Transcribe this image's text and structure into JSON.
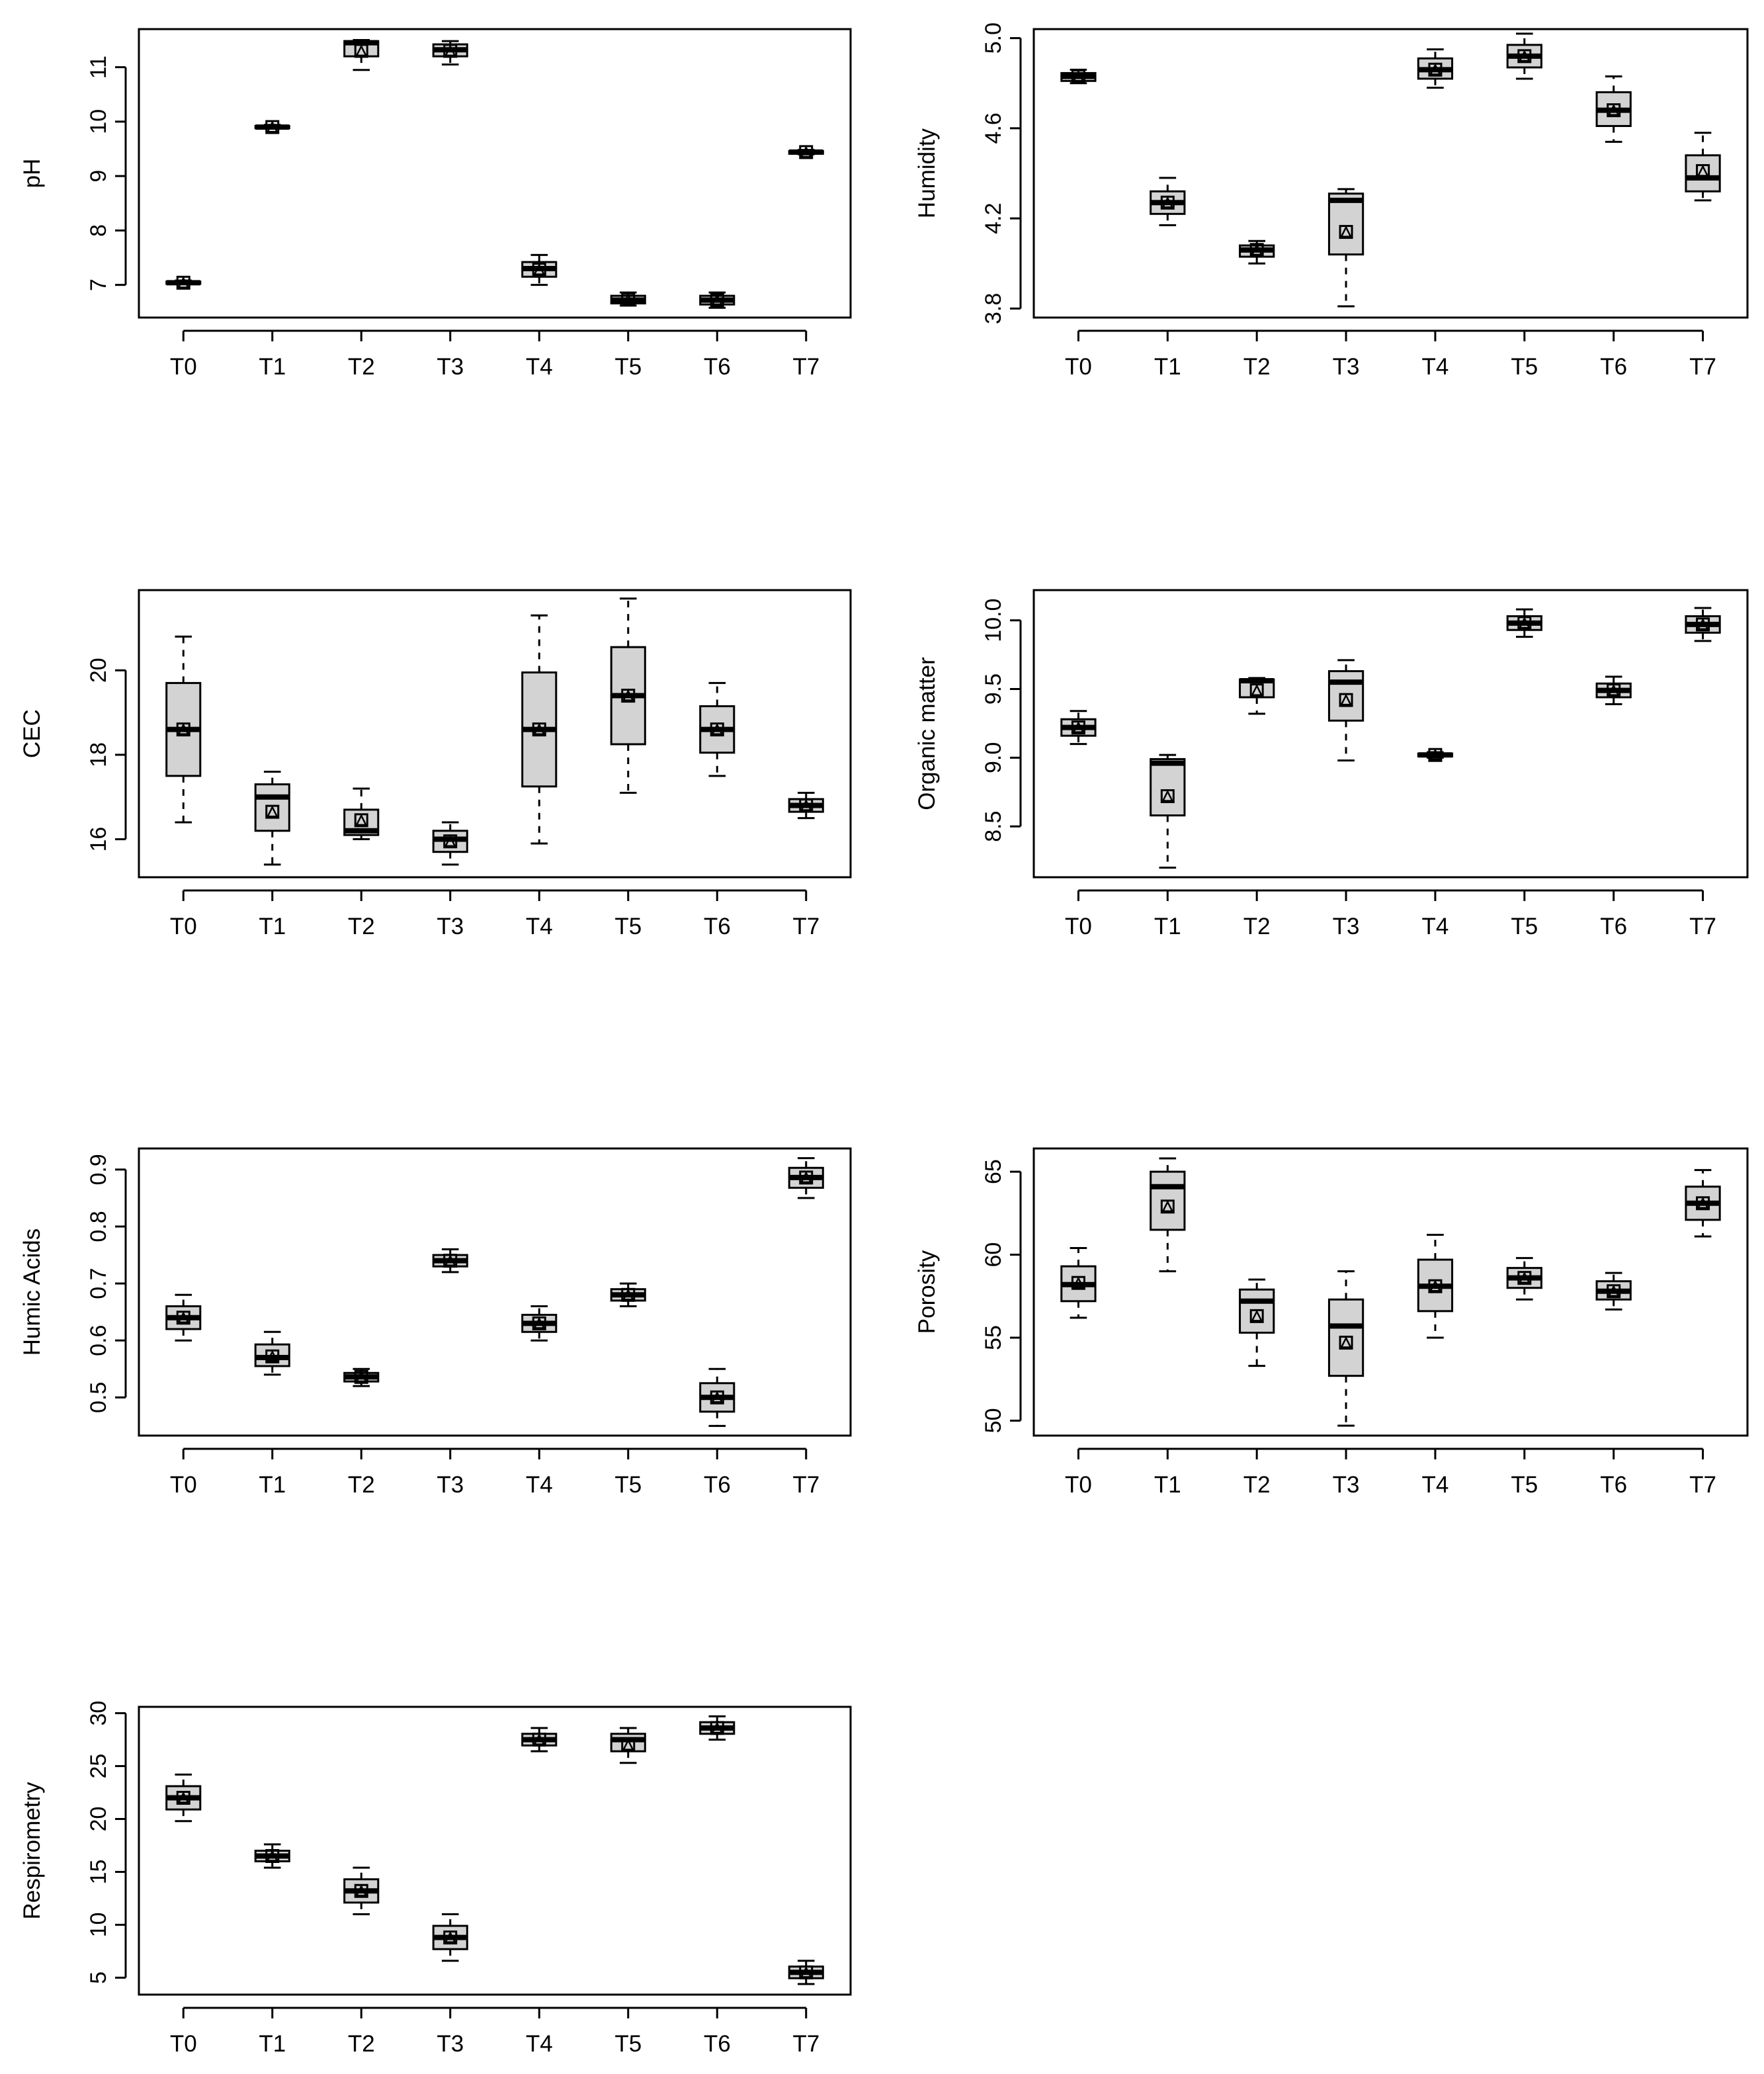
{
  "figure": {
    "colors": {
      "box_fill": "#d3d3d3",
      "stroke": "#000000",
      "background": "#ffffff"
    }
  },
  "chart_data": [
    {
      "type": "boxplot",
      "ylabel": "pH",
      "categories": [
        "T0",
        "T1",
        "T2",
        "T3",
        "T4",
        "T5",
        "T6",
        "T7"
      ],
      "yticks": [
        7,
        8,
        9,
        10,
        11
      ],
      "ylim": [
        6.4,
        11.7
      ],
      "series": [
        {
          "name": "T0",
          "min": 7.02,
          "q1": 7.02,
          "median": 7.04,
          "q3": 7.06,
          "max": 7.08,
          "mean": 7.04
        },
        {
          "name": "T1",
          "min": 9.87,
          "q1": 9.88,
          "median": 9.9,
          "q3": 9.92,
          "max": 9.94,
          "mean": 9.9
        },
        {
          "name": "T2",
          "min": 10.95,
          "q1": 11.2,
          "median": 11.45,
          "q3": 11.48,
          "max": 11.5,
          "mean": 11.3
        },
        {
          "name": "T3",
          "min": 11.05,
          "q1": 11.2,
          "median": 11.32,
          "q3": 11.42,
          "max": 11.48,
          "mean": 11.3
        },
        {
          "name": "T4",
          "min": 7.0,
          "q1": 7.15,
          "median": 7.3,
          "q3": 7.42,
          "max": 7.55,
          "mean": 7.28
        },
        {
          "name": "T5",
          "min": 6.62,
          "q1": 6.66,
          "median": 6.72,
          "q3": 6.8,
          "max": 6.86,
          "mean": 6.73
        },
        {
          "name": "T6",
          "min": 6.58,
          "q1": 6.64,
          "median": 6.72,
          "q3": 6.8,
          "max": 6.86,
          "mean": 6.72
        },
        {
          "name": "T7",
          "min": 9.4,
          "q1": 9.41,
          "median": 9.44,
          "q3": 9.46,
          "max": 9.48,
          "mean": 9.44
        }
      ]
    },
    {
      "type": "boxplot",
      "ylabel": "Humidity",
      "categories": [
        "T0",
        "T1",
        "T2",
        "T3",
        "T4",
        "T5",
        "T6",
        "T7"
      ],
      "yticks": [
        "3.8",
        "4.2",
        "4.6",
        "5.0"
      ],
      "ylim": [
        3.76,
        5.04
      ],
      "series": [
        {
          "name": "T0",
          "min": 4.8,
          "q1": 4.81,
          "median": 4.83,
          "q3": 4.845,
          "max": 4.86,
          "mean": 4.83
        },
        {
          "name": "T1",
          "min": 4.17,
          "q1": 4.22,
          "median": 4.27,
          "q3": 4.32,
          "max": 4.38,
          "mean": 4.27
        },
        {
          "name": "T2",
          "min": 4.0,
          "q1": 4.03,
          "median": 4.06,
          "q3": 4.08,
          "max": 4.1,
          "mean": 4.06
        },
        {
          "name": "T3",
          "min": 3.81,
          "q1": 4.04,
          "median": 4.28,
          "q3": 4.31,
          "max": 4.33,
          "mean": 4.14
        },
        {
          "name": "T4",
          "min": 4.78,
          "q1": 4.82,
          "median": 4.86,
          "q3": 4.91,
          "max": 4.95,
          "mean": 4.86
        },
        {
          "name": "T5",
          "min": 4.82,
          "q1": 4.87,
          "median": 4.92,
          "q3": 4.97,
          "max": 5.02,
          "mean": 4.92
        },
        {
          "name": "T6",
          "min": 4.54,
          "q1": 4.61,
          "median": 4.68,
          "q3": 4.76,
          "max": 4.83,
          "mean": 4.68
        },
        {
          "name": "T7",
          "min": 4.28,
          "q1": 4.32,
          "median": 4.38,
          "q3": 4.48,
          "max": 4.58,
          "mean": 4.41
        }
      ]
    },
    {
      "type": "boxplot",
      "ylabel": "CEC",
      "categories": [
        "T0",
        "T1",
        "T2",
        "T3",
        "T4",
        "T5",
        "T6",
        "T7"
      ],
      "yticks": [
        16,
        18,
        20
      ],
      "ylim": [
        15.1,
        21.9
      ],
      "series": [
        {
          "name": "T0",
          "min": 16.4,
          "q1": 17.5,
          "median": 18.6,
          "q3": 19.7,
          "max": 20.8,
          "mean": 18.6
        },
        {
          "name": "T1",
          "min": 15.4,
          "q1": 16.2,
          "median": 17.0,
          "q3": 17.3,
          "max": 17.6,
          "mean": 16.65
        },
        {
          "name": "T2",
          "min": 16.0,
          "q1": 16.1,
          "median": 16.2,
          "q3": 16.7,
          "max": 17.2,
          "mean": 16.45
        },
        {
          "name": "T3",
          "min": 15.4,
          "q1": 15.7,
          "median": 16.0,
          "q3": 16.2,
          "max": 16.4,
          "mean": 15.95
        },
        {
          "name": "T4",
          "min": 15.9,
          "q1": 17.25,
          "median": 18.6,
          "q3": 19.95,
          "max": 21.3,
          "mean": 18.6
        },
        {
          "name": "T5",
          "min": 17.1,
          "q1": 18.25,
          "median": 19.4,
          "q3": 20.55,
          "max": 21.7,
          "mean": 19.4
        },
        {
          "name": "T6",
          "min": 17.5,
          "q1": 18.05,
          "median": 18.6,
          "q3": 19.15,
          "max": 19.7,
          "mean": 18.6
        },
        {
          "name": "T7",
          "min": 16.5,
          "q1": 16.65,
          "median": 16.8,
          "q3": 16.95,
          "max": 17.1,
          "mean": 16.8
        }
      ]
    },
    {
      "type": "boxplot",
      "ylabel": "Organic matter",
      "categories": [
        "T0",
        "T1",
        "T2",
        "T3",
        "T4",
        "T5",
        "T6",
        "T7"
      ],
      "yticks": [
        "8.5",
        "9.0",
        "9.5",
        "10.0"
      ],
      "ylim": [
        8.13,
        10.22
      ],
      "series": [
        {
          "name": "T0",
          "min": 9.1,
          "q1": 9.16,
          "median": 9.22,
          "q3": 9.28,
          "max": 9.34,
          "mean": 9.22
        },
        {
          "name": "T1",
          "min": 8.2,
          "q1": 8.58,
          "median": 8.96,
          "q3": 8.99,
          "max": 9.02,
          "mean": 8.72
        },
        {
          "name": "T2",
          "min": 9.32,
          "q1": 9.44,
          "median": 9.56,
          "q3": 9.57,
          "max": 9.58,
          "mean": 9.49
        },
        {
          "name": "T3",
          "min": 8.98,
          "q1": 9.27,
          "median": 9.55,
          "q3": 9.63,
          "max": 9.71,
          "mean": 9.42
        },
        {
          "name": "T4",
          "min": 9.0,
          "q1": 9.01,
          "median": 9.02,
          "q3": 9.03,
          "max": 9.04,
          "mean": 9.02
        },
        {
          "name": "T5",
          "min": 9.88,
          "q1": 9.93,
          "median": 9.98,
          "q3": 10.03,
          "max": 10.08,
          "mean": 9.98
        },
        {
          "name": "T6",
          "min": 9.39,
          "q1": 9.44,
          "median": 9.49,
          "q3": 9.54,
          "max": 9.59,
          "mean": 9.49
        },
        {
          "name": "T7",
          "min": 9.85,
          "q1": 9.91,
          "median": 9.97,
          "q3": 10.03,
          "max": 10.09,
          "mean": 9.97
        }
      ]
    },
    {
      "type": "boxplot",
      "ylabel": "Humic Acids",
      "categories": [
        "T0",
        "T1",
        "T2",
        "T3",
        "T4",
        "T5",
        "T6",
        "T7"
      ],
      "yticks": [
        "0.5",
        "0.6",
        "0.7",
        "0.8",
        "0.9"
      ],
      "ylim": [
        0.433,
        0.937
      ],
      "series": [
        {
          "name": "T0",
          "min": 0.6,
          "q1": 0.62,
          "median": 0.64,
          "q3": 0.66,
          "max": 0.68,
          "mean": 0.64
        },
        {
          "name": "T1",
          "min": 0.54,
          "q1": 0.555,
          "median": 0.57,
          "q3": 0.593,
          "max": 0.615,
          "mean": 0.572
        },
        {
          "name": "T2",
          "min": 0.52,
          "q1": 0.528,
          "median": 0.536,
          "q3": 0.543,
          "max": 0.55,
          "mean": 0.536
        },
        {
          "name": "T3",
          "min": 0.72,
          "q1": 0.73,
          "median": 0.74,
          "q3": 0.75,
          "max": 0.76,
          "mean": 0.74
        },
        {
          "name": "T4",
          "min": 0.6,
          "q1": 0.615,
          "median": 0.63,
          "q3": 0.645,
          "max": 0.66,
          "mean": 0.63
        },
        {
          "name": "T5",
          "min": 0.66,
          "q1": 0.67,
          "median": 0.68,
          "q3": 0.69,
          "max": 0.7,
          "mean": 0.68
        },
        {
          "name": "T6",
          "min": 0.45,
          "q1": 0.475,
          "median": 0.5,
          "q3": 0.525,
          "max": 0.55,
          "mean": 0.5
        },
        {
          "name": "T7",
          "min": 0.85,
          "q1": 0.868,
          "median": 0.886,
          "q3": 0.903,
          "max": 0.92,
          "mean": 0.886
        }
      ]
    },
    {
      "type": "boxplot",
      "ylabel": "Porosity",
      "categories": [
        "T0",
        "T1",
        "T2",
        "T3",
        "T4",
        "T5",
        "T6",
        "T7"
      ],
      "yticks": [
        50,
        55,
        60,
        65
      ],
      "ylim": [
        49.1,
        66.4
      ],
      "series": [
        {
          "name": "T0",
          "min": 56.2,
          "q1": 57.2,
          "median": 58.2,
          "q3": 59.3,
          "max": 60.4,
          "mean": 58.3
        },
        {
          "name": "T1",
          "min": 59.0,
          "q1": 61.5,
          "median": 64.1,
          "q3": 65.0,
          "max": 65.8,
          "mean": 62.9
        },
        {
          "name": "T2",
          "min": 53.3,
          "q1": 55.3,
          "median": 57.2,
          "q3": 57.9,
          "max": 58.5,
          "mean": 56.3
        },
        {
          "name": "T3",
          "min": 49.7,
          "q1": 52.7,
          "median": 55.7,
          "q3": 57.3,
          "max": 59.0,
          "mean": 54.7
        },
        {
          "name": "T4",
          "min": 55.0,
          "q1": 56.6,
          "median": 58.1,
          "q3": 59.7,
          "max": 61.2,
          "mean": 58.1
        },
        {
          "name": "T5",
          "min": 57.3,
          "q1": 58.0,
          "median": 58.6,
          "q3": 59.2,
          "max": 59.8,
          "mean": 58.6
        },
        {
          "name": "T6",
          "min": 56.7,
          "q1": 57.3,
          "median": 57.8,
          "q3": 58.4,
          "max": 58.9,
          "mean": 57.8
        },
        {
          "name": "T7",
          "min": 61.1,
          "q1": 62.1,
          "median": 63.1,
          "q3": 64.1,
          "max": 65.1,
          "mean": 63.1
        }
      ]
    },
    {
      "type": "boxplot",
      "ylabel": "Respirometry",
      "categories": [
        "T0",
        "T1",
        "T2",
        "T3",
        "T4",
        "T5",
        "T6",
        "T7"
      ],
      "yticks": [
        5,
        10,
        15,
        20,
        25,
        30
      ],
      "ylim": [
        3.4,
        30.6
      ],
      "series": [
        {
          "name": "T0",
          "min": 19.8,
          "q1": 20.9,
          "median": 22.0,
          "q3": 23.1,
          "max": 24.2,
          "mean": 22.0
        },
        {
          "name": "T1",
          "min": 15.4,
          "q1": 16.0,
          "median": 16.5,
          "q3": 17.0,
          "max": 17.6,
          "mean": 16.5
        },
        {
          "name": "T2",
          "min": 11.0,
          "q1": 12.1,
          "median": 13.2,
          "q3": 14.3,
          "max": 15.4,
          "mean": 13.2
        },
        {
          "name": "T3",
          "min": 6.6,
          "q1": 7.7,
          "median": 8.8,
          "q3": 9.9,
          "max": 11.0,
          "mean": 8.8
        },
        {
          "name": "T4",
          "min": 26.4,
          "q1": 26.95,
          "median": 27.5,
          "q3": 28.05,
          "max": 28.6,
          "mean": 27.5
        },
        {
          "name": "T5",
          "min": 25.3,
          "q1": 26.4,
          "median": 27.5,
          "q3": 28.05,
          "max": 28.6,
          "mean": 27.0
        },
        {
          "name": "T6",
          "min": 27.5,
          "q1": 28.05,
          "median": 28.6,
          "q3": 29.15,
          "max": 29.7,
          "mean": 28.6
        },
        {
          "name": "T7",
          "min": 4.4,
          "q1": 4.95,
          "median": 5.5,
          "q3": 6.05,
          "max": 6.6,
          "mean": 5.5
        }
      ]
    }
  ]
}
